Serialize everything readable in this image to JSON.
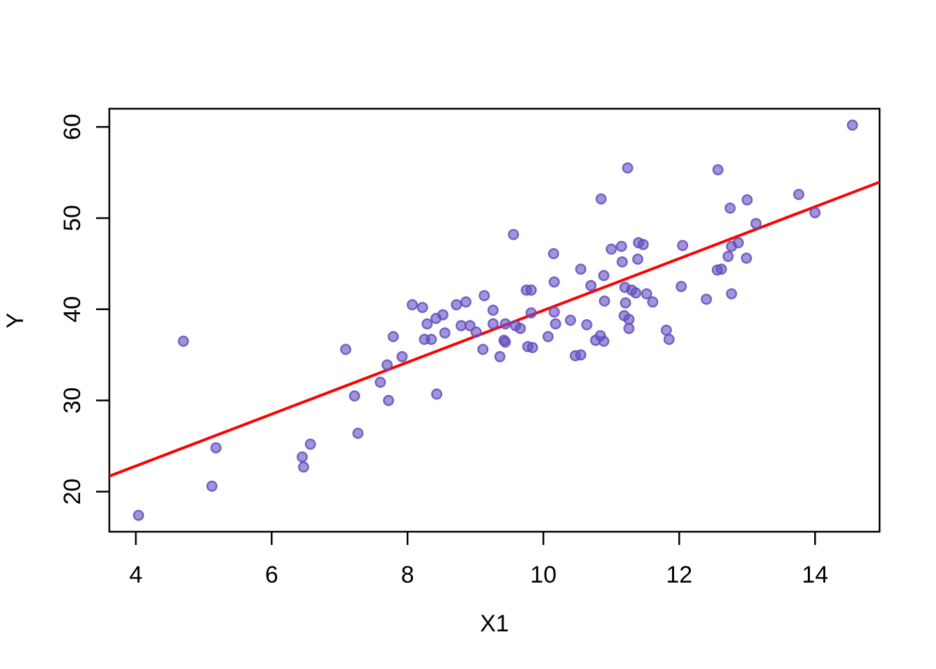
{
  "figure": {
    "background": "#ffffff",
    "frame_color": "#000000"
  },
  "chart_data": {
    "type": "scatter",
    "title": "",
    "xlabel": "X1",
    "ylabel": "Y",
    "xlim": [
      3.61,
      14.95
    ],
    "ylim": [
      15.6,
      62.0
    ],
    "x_ticks": [
      4,
      6,
      8,
      10,
      12,
      14
    ],
    "y_ticks": [
      20,
      30,
      40,
      50,
      60
    ],
    "grid": false,
    "legend": null,
    "point_style": {
      "fill": "rgba(98,77,190,0.6)",
      "stroke": "rgba(98,77,190,0.85)",
      "radius": 6.8,
      "stroke_width": 2.4
    },
    "regression_line": {
      "color": "#FF0000",
      "width": 4,
      "slope": 2.84,
      "intercept": 11.45,
      "x1": 3.61,
      "y1": 21.7,
      "x2": 14.95,
      "y2": 53.95
    },
    "points": [
      [
        4.04,
        17.4
      ],
      [
        4.7,
        36.5
      ],
      [
        5.12,
        20.6
      ],
      [
        5.18,
        24.8
      ],
      [
        6.45,
        23.8
      ],
      [
        6.47,
        22.7
      ],
      [
        6.57,
        25.2
      ],
      [
        7.09,
        35.6
      ],
      [
        7.22,
        30.5
      ],
      [
        7.27,
        26.4
      ],
      [
        7.6,
        32.0
      ],
      [
        7.7,
        33.9
      ],
      [
        7.72,
        30.0
      ],
      [
        8.43,
        30.7
      ],
      [
        7.79,
        37.0
      ],
      [
        7.92,
        34.8
      ],
      [
        8.07,
        40.5
      ],
      [
        8.22,
        40.2
      ],
      [
        8.25,
        36.7
      ],
      [
        8.29,
        38.4
      ],
      [
        8.35,
        36.7
      ],
      [
        8.42,
        39.0
      ],
      [
        8.52,
        39.4
      ],
      [
        8.55,
        37.4
      ],
      [
        8.72,
        40.5
      ],
      [
        8.79,
        38.2
      ],
      [
        8.86,
        40.8
      ],
      [
        8.92,
        38.2
      ],
      [
        9.01,
        37.5
      ],
      [
        9.11,
        35.6
      ],
      [
        9.13,
        41.5
      ],
      [
        9.26,
        39.9
      ],
      [
        9.26,
        38.4
      ],
      [
        9.36,
        34.8
      ],
      [
        9.42,
        36.6
      ],
      [
        9.44,
        36.4
      ],
      [
        9.44,
        38.4
      ],
      [
        9.56,
        48.2
      ],
      [
        9.59,
        38.2
      ],
      [
        9.66,
        37.9
      ],
      [
        9.75,
        42.1
      ],
      [
        9.77,
        35.9
      ],
      [
        9.82,
        42.1
      ],
      [
        9.82,
        39.6
      ],
      [
        9.84,
        35.8
      ],
      [
        10.07,
        37.0
      ],
      [
        10.15,
        46.1
      ],
      [
        10.16,
        43.0
      ],
      [
        10.16,
        39.7
      ],
      [
        10.18,
        38.4
      ],
      [
        10.4,
        38.8
      ],
      [
        10.47,
        34.9
      ],
      [
        10.55,
        35.0
      ],
      [
        10.55,
        44.4
      ],
      [
        10.64,
        38.3
      ],
      [
        10.7,
        42.6
      ],
      [
        10.77,
        36.6
      ],
      [
        10.84,
        37.1
      ],
      [
        10.85,
        52.1
      ],
      [
        10.89,
        36.5
      ],
      [
        10.89,
        43.7
      ],
      [
        10.9,
        40.9
      ],
      [
        11.0,
        46.6
      ],
      [
        11.15,
        46.9
      ],
      [
        11.16,
        45.2
      ],
      [
        11.19,
        39.3
      ],
      [
        11.2,
        42.4
      ],
      [
        11.21,
        40.7
      ],
      [
        11.24,
        55.5
      ],
      [
        11.26,
        38.9
      ],
      [
        11.26,
        37.9
      ],
      [
        11.3,
        42.1
      ],
      [
        11.36,
        41.8
      ],
      [
        11.39,
        45.5
      ],
      [
        11.4,
        47.3
      ],
      [
        11.47,
        47.1
      ],
      [
        11.52,
        41.7
      ],
      [
        11.61,
        40.8
      ],
      [
        11.81,
        37.7
      ],
      [
        11.85,
        36.7
      ],
      [
        12.03,
        42.5
      ],
      [
        12.05,
        47.0
      ],
      [
        12.4,
        41.1
      ],
      [
        12.56,
        44.3
      ],
      [
        12.62,
        44.4
      ],
      [
        12.57,
        55.3
      ],
      [
        12.72,
        45.8
      ],
      [
        12.75,
        51.1
      ],
      [
        12.77,
        46.9
      ],
      [
        12.87,
        47.3
      ],
      [
        12.77,
        41.7
      ],
      [
        12.99,
        45.6
      ],
      [
        13.0,
        52.0
      ],
      [
        13.13,
        49.4
      ],
      [
        13.76,
        52.6
      ],
      [
        14.0,
        50.6
      ],
      [
        14.55,
        60.2
      ]
    ]
  }
}
